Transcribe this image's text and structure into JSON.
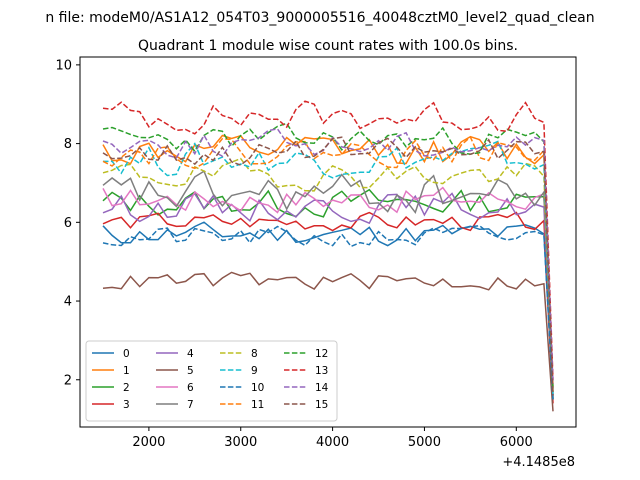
{
  "figure": {
    "suptitle": "n file: modeM0/AS1A12_054T03_9000005516_40048cztM0_level2_quad_clean",
    "title": "Quadrant 1 module wise count rates with 100.0s bins.",
    "offset_text": "+4.1485e8"
  },
  "chart_data": {
    "type": "line",
    "title": "Quadrant 1 module wise count rates with 100.0s bins.",
    "xlabel": "",
    "ylabel": "",
    "x_offset": "+4.1485e8",
    "xlim": [
      1250,
      6650
    ],
    "ylim": [
      0.8,
      10.2
    ],
    "xticks": [
      2000,
      3000,
      4000,
      5000,
      6000
    ],
    "yticks": [
      2,
      4,
      6,
      8,
      10
    ],
    "xtick_labels": [
      "2000",
      "3000",
      "4000",
      "5000",
      "6000"
    ],
    "ytick_labels": [
      "2",
      "4",
      "6",
      "8",
      "10"
    ],
    "grid": false,
    "legend": {
      "placement": "lower-left",
      "columns": 4
    },
    "x": {
      "start": 1500,
      "step": 100,
      "count": 50
    },
    "series": [
      {
        "name": "0",
        "color": "#1f77b4",
        "dash": "solid",
        "base": 5.7,
        "amp": 0.25,
        "seed": 11,
        "end": 1.6
      },
      {
        "name": "1",
        "color": "#ff7f0e",
        "dash": "solid",
        "base": 7.8,
        "amp": 0.35,
        "seed": 12,
        "end": 1.7
      },
      {
        "name": "2",
        "color": "#2ca02c",
        "dash": "solid",
        "base": 6.5,
        "amp": 0.3,
        "seed": 13,
        "end": 1.5
      },
      {
        "name": "3",
        "color": "#d62728",
        "dash": "solid",
        "base": 6.0,
        "amp": 0.2,
        "seed": 14,
        "end": 1.4
      },
      {
        "name": "4",
        "color": "#9467bd",
        "dash": "solid",
        "base": 6.4,
        "amp": 0.3,
        "seed": 15,
        "end": 1.8
      },
      {
        "name": "5",
        "color": "#8c564b",
        "dash": "solid",
        "base": 4.5,
        "amp": 0.2,
        "seed": 16,
        "end": 1.2
      },
      {
        "name": "6",
        "color": "#e377c2",
        "dash": "solid",
        "base": 6.6,
        "amp": 0.3,
        "seed": 17,
        "end": 1.6
      },
      {
        "name": "7",
        "color": "#7f7f7f",
        "dash": "solid",
        "base": 6.7,
        "amp": 0.45,
        "seed": 18,
        "end": 1.5
      },
      {
        "name": "8",
        "color": "#bcbd22",
        "dash": "dashed",
        "base": 7.2,
        "amp": 0.3,
        "seed": 19,
        "end": 1.7
      },
      {
        "name": "9",
        "color": "#17becf",
        "dash": "dashed",
        "base": 7.6,
        "amp": 0.35,
        "seed": 20,
        "end": 1.6
      },
      {
        "name": "10",
        "color": "#1f77b4",
        "dash": "dashed",
        "base": 5.6,
        "amp": 0.25,
        "seed": 21,
        "end": 1.5
      },
      {
        "name": "11",
        "color": "#ff7f0e",
        "dash": "dashed",
        "base": 7.8,
        "amp": 0.3,
        "seed": 22,
        "end": 1.8
      },
      {
        "name": "12",
        "color": "#2ca02c",
        "dash": "dashed",
        "base": 8.1,
        "amp": 0.3,
        "seed": 23,
        "end": 1.7
      },
      {
        "name": "13",
        "color": "#d62728",
        "dash": "dashed",
        "base": 8.7,
        "amp": 0.35,
        "seed": 24,
        "end": 2.0
      },
      {
        "name": "14",
        "color": "#9467bd",
        "dash": "dashed",
        "base": 8.0,
        "amp": 0.3,
        "seed": 25,
        "end": 1.9
      },
      {
        "name": "15",
        "color": "#8c564b",
        "dash": "dashed",
        "base": 7.8,
        "amp": 0.3,
        "seed": 26,
        "end": 1.6
      }
    ]
  }
}
